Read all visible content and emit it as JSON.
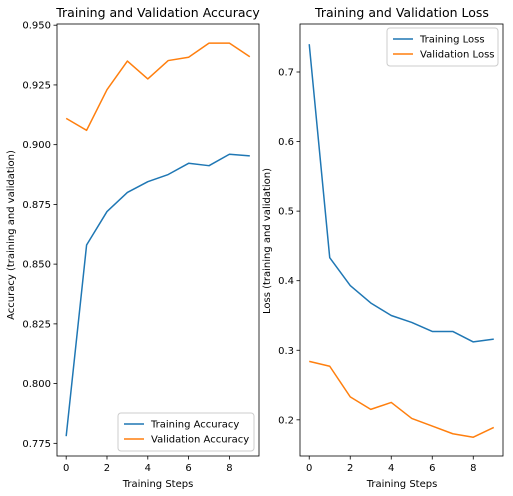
{
  "chart_data": [
    {
      "type": "line",
      "title": "Training and Validation Accuracy",
      "xlabel": "Training Steps",
      "ylabel": "Accuracy (training and validation)",
      "x": [
        0,
        1,
        2,
        3,
        4,
        5,
        6,
        7,
        8,
        9
      ],
      "xticks": [
        0,
        2,
        4,
        6,
        8
      ],
      "yticks": [
        0.775,
        0.8,
        0.825,
        0.85,
        0.875,
        0.9,
        0.925,
        0.95
      ],
      "ytick_labels": [
        "0.775",
        "0.800",
        "0.825",
        "0.850",
        "0.875",
        "0.900",
        "0.925",
        "0.950"
      ],
      "xlim": [
        -0.45,
        9.45
      ],
      "ylim": [
        0.7697,
        0.9505
      ],
      "legend_position": "lower-right",
      "grid": false,
      "series": [
        {
          "name": "Training Accuracy",
          "color": "#1f77b4",
          "values": [
            0.778,
            0.858,
            0.872,
            0.88,
            0.8845,
            0.8875,
            0.8922,
            0.8912,
            0.896,
            0.8953
          ]
        },
        {
          "name": "Validation Accuracy",
          "color": "#ff7f0e",
          "values": [
            0.911,
            0.906,
            0.923,
            0.935,
            0.9275,
            0.9352,
            0.9366,
            0.9425,
            0.9425,
            0.9368
          ]
        }
      ]
    },
    {
      "type": "line",
      "title": "Training and Validation Loss",
      "xlabel": "Training Steps",
      "ylabel": "Loss (training and validation)",
      "x": [
        0,
        1,
        2,
        3,
        4,
        5,
        6,
        7,
        8,
        9
      ],
      "xticks": [
        0,
        2,
        4,
        6,
        8
      ],
      "yticks": [
        0.2,
        0.3,
        0.4,
        0.5,
        0.6,
        0.7
      ],
      "ytick_labels": [
        "0.2",
        "0.3",
        "0.4",
        "0.5",
        "0.6",
        "0.7"
      ],
      "xlim": [
        -0.45,
        9.45
      ],
      "ylim": [
        0.148,
        0.769
      ],
      "legend_position": "upper-right",
      "grid": false,
      "series": [
        {
          "name": "Training Loss",
          "color": "#1f77b4",
          "values": [
            0.74,
            0.433,
            0.393,
            0.368,
            0.35,
            0.34,
            0.327,
            0.327,
            0.312,
            0.316
          ]
        },
        {
          "name": "Validation Loss",
          "color": "#ff7f0e",
          "values": [
            0.284,
            0.277,
            0.233,
            0.215,
            0.225,
            0.202,
            0.191,
            0.18,
            0.175,
            0.189
          ]
        }
      ]
    }
  ]
}
